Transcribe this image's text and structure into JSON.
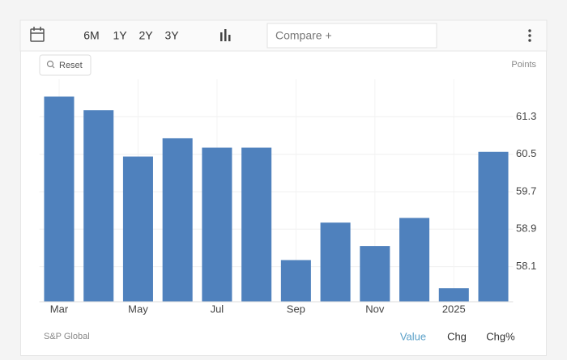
{
  "toolbar": {
    "ranges": [
      "6M",
      "1Y",
      "2Y",
      "3Y"
    ],
    "compare": "Compare +"
  },
  "chart_data": {
    "type": "bar",
    "reset": "Reset",
    "units": "Points",
    "categories": [
      "Mar",
      null,
      "May",
      null,
      "Jul",
      null,
      "Sep",
      null,
      "Nov",
      null,
      "2025",
      null
    ],
    "values": [
      61.73,
      61.44,
      60.45,
      60.84,
      60.64,
      60.64,
      58.24,
      59.04,
      58.54,
      59.14,
      57.64,
      60.55
    ],
    "color": "#4f81bd",
    "ylim": [
      57.35,
      62.1
    ],
    "yticks": [
      58.1,
      58.9,
      59.7,
      60.5,
      61.3
    ],
    "grid": true
  },
  "footer": {
    "source": "S&P Global",
    "modes": [
      "Value",
      "Chg",
      "Chg%"
    ]
  }
}
